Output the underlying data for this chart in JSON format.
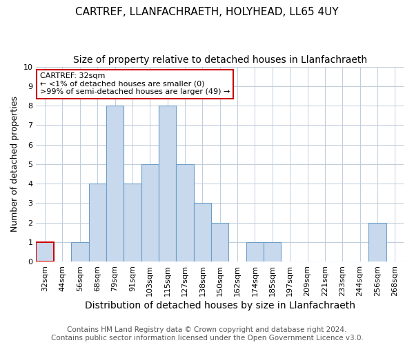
{
  "title1": "CARTREF, LLANFACHRAETH, HOLYHEAD, LL65 4UY",
  "title2": "Size of property relative to detached houses in Llanfachraeth",
  "xlabel": "Distribution of detached houses by size in Llanfachraeth",
  "ylabel": "Number of detached properties",
  "categories": [
    "32sqm",
    "44sqm",
    "56sqm",
    "68sqm",
    "79sqm",
    "91sqm",
    "103sqm",
    "115sqm",
    "127sqm",
    "138sqm",
    "150sqm",
    "162sqm",
    "174sqm",
    "185sqm",
    "197sqm",
    "209sqm",
    "221sqm",
    "233sqm",
    "244sqm",
    "256sqm",
    "268sqm"
  ],
  "values": [
    1,
    0,
    1,
    4,
    8,
    4,
    5,
    8,
    5,
    3,
    2,
    0,
    1,
    1,
    0,
    0,
    0,
    0,
    0,
    2,
    0
  ],
  "bar_color": "#c9d9ed",
  "bar_edge_color": "#6a9ec7",
  "highlight_index": 0,
  "highlight_edge_color": "#cc0000",
  "ylim": [
    0,
    10
  ],
  "yticks": [
    0,
    1,
    2,
    3,
    4,
    5,
    6,
    7,
    8,
    9,
    10
  ],
  "annotation_text": "CARTREF: 32sqm\n← <1% of detached houses are smaller (0)\n>99% of semi-detached houses are larger (49) →",
  "annotation_box_edge_color": "#cc0000",
  "footer": "Contains HM Land Registry data © Crown copyright and database right 2024.\nContains public sector information licensed under the Open Government Licence v3.0.",
  "grid_color": "#c0ccdb",
  "title1_fontsize": 11,
  "title2_fontsize": 10,
  "xlabel_fontsize": 10,
  "ylabel_fontsize": 9,
  "tick_fontsize": 8,
  "footer_fontsize": 7.5,
  "annotation_fontsize": 8
}
